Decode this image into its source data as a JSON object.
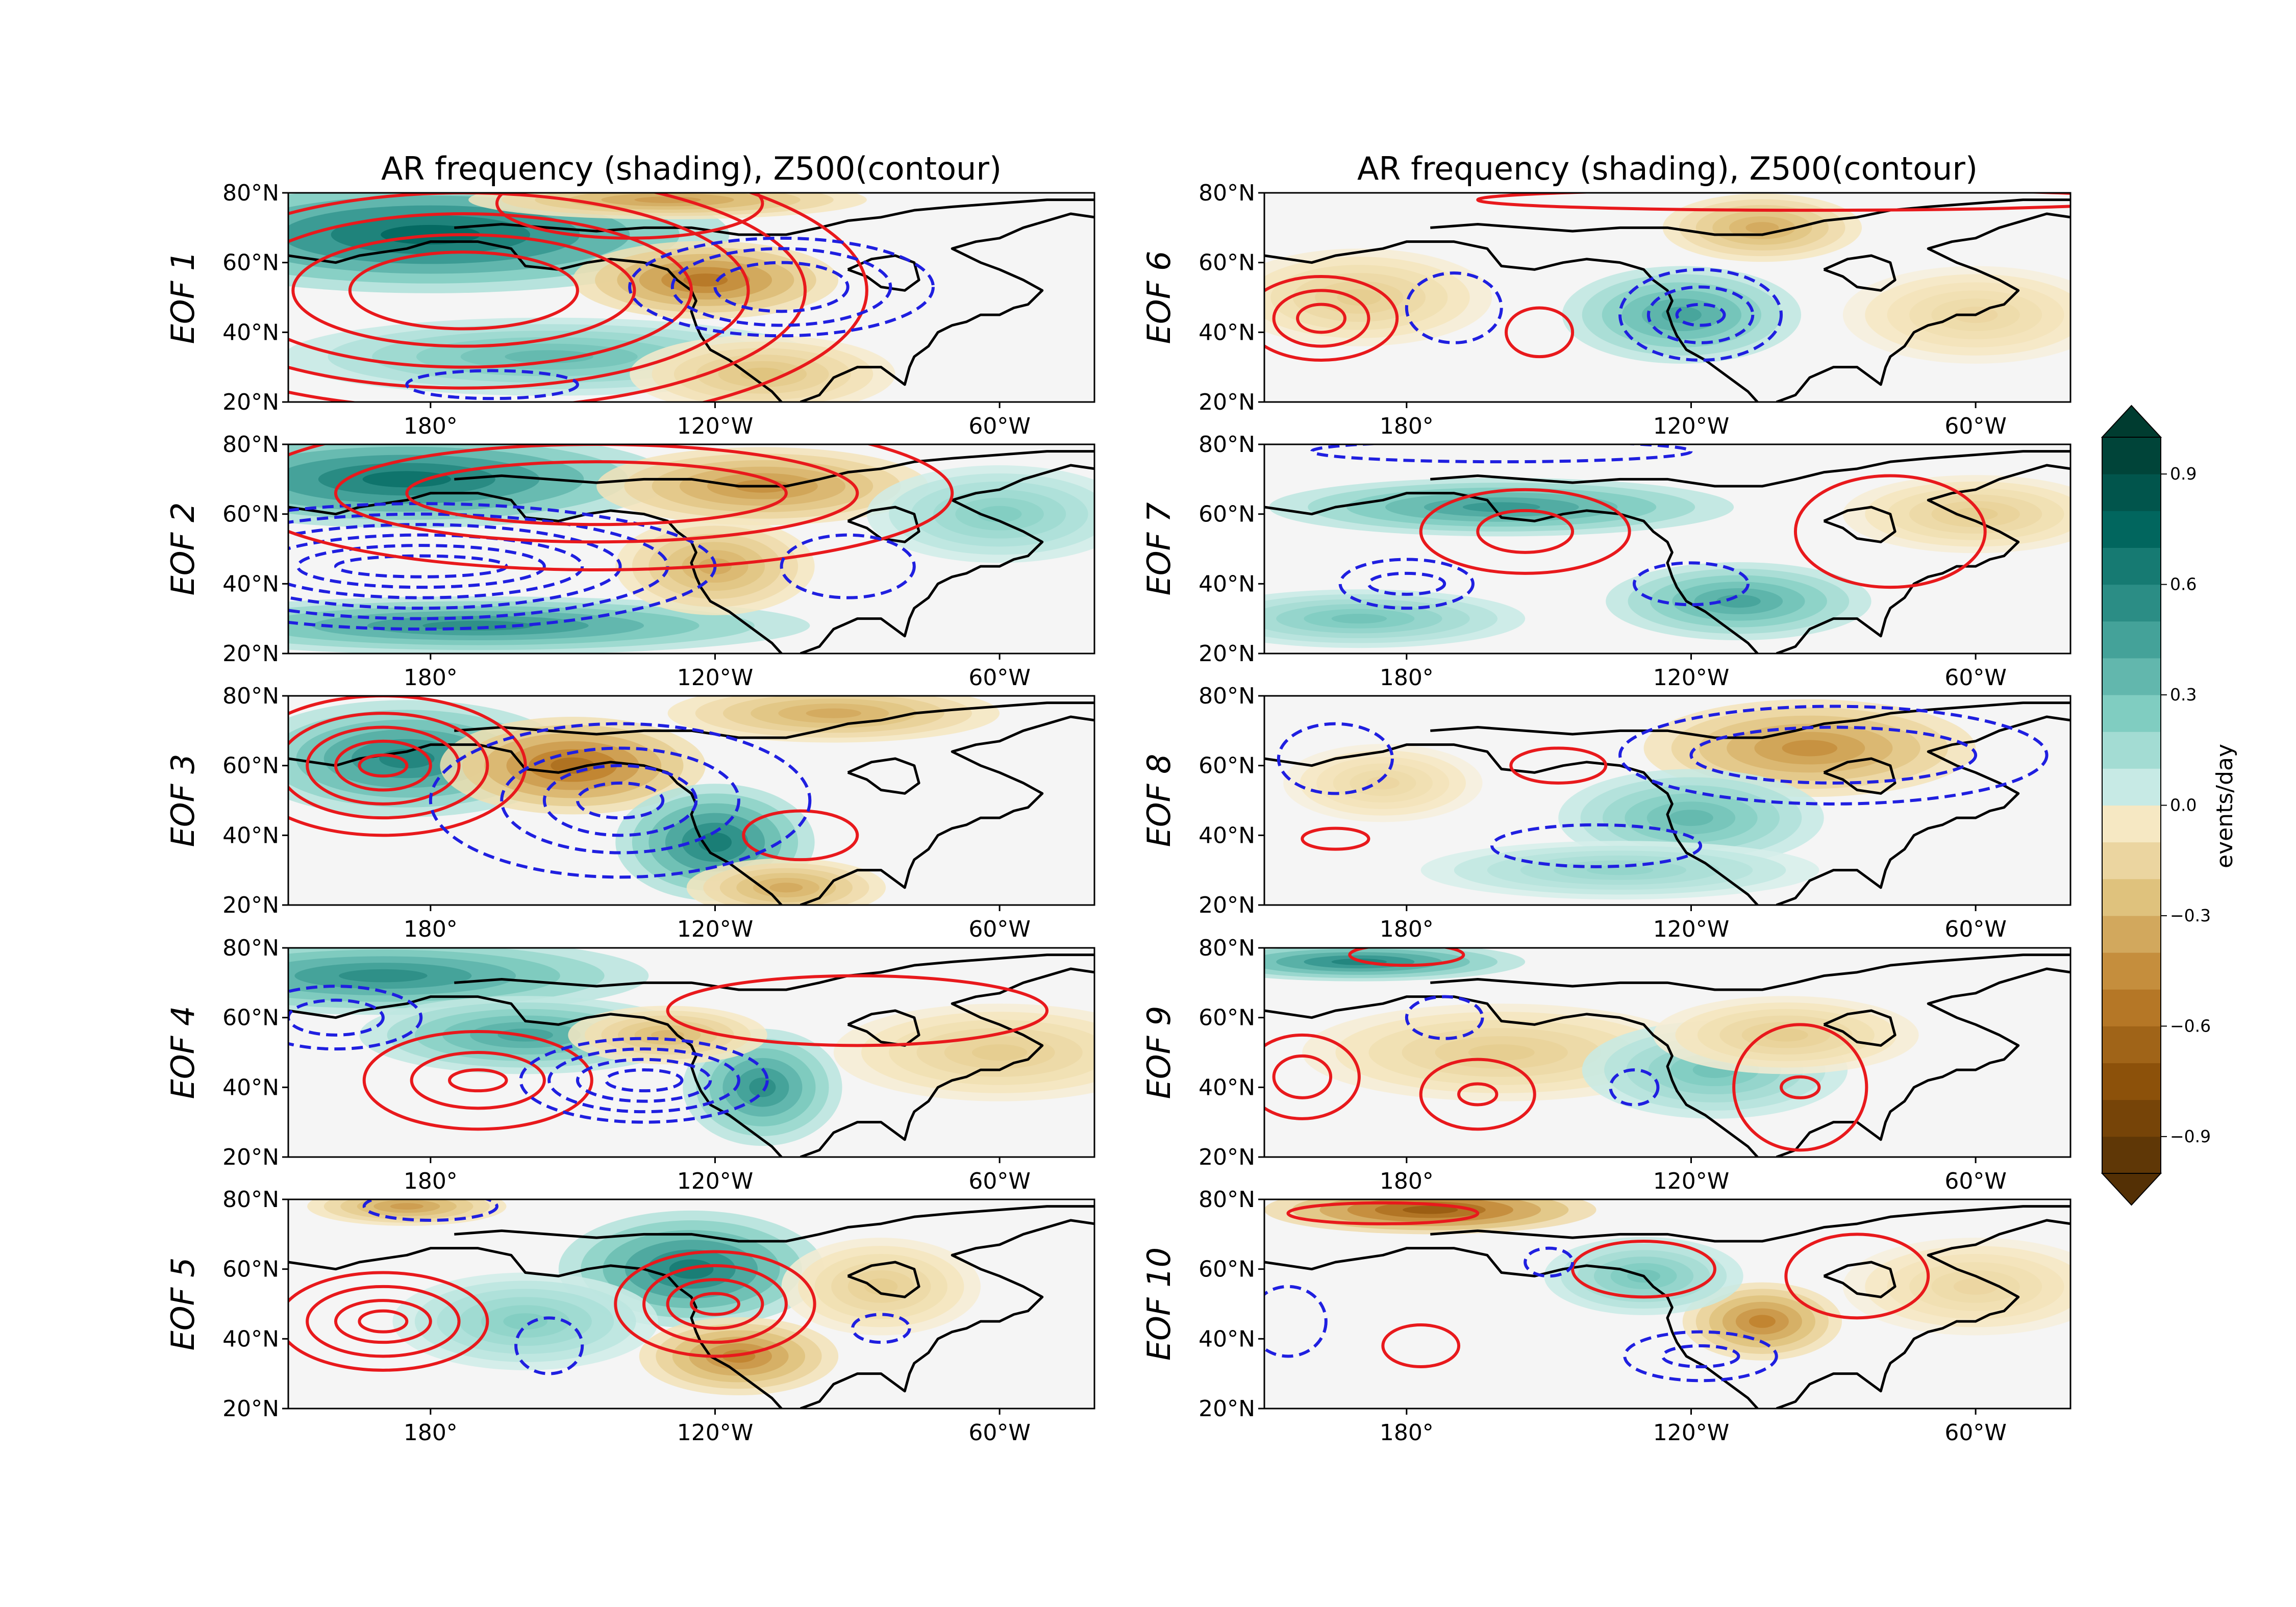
{
  "chart_data": {
    "type": "heatmap",
    "column_titles": [
      "AR frequency (shading), Z500(contour)",
      "AR frequency (shading), Z500(contour)"
    ],
    "panels": [
      {
        "label": "EOF 1"
      },
      {
        "label": "EOF 6"
      },
      {
        "label": "EOF 2"
      },
      {
        "label": "EOF 7"
      },
      {
        "label": "EOF 3"
      },
      {
        "label": "EOF 8"
      },
      {
        "label": "EOF 4"
      },
      {
        "label": "EOF 9"
      },
      {
        "label": "EOF 5"
      },
      {
        "label": "EOF 10"
      }
    ],
    "lat_ticks": [
      "20°N",
      "40°N",
      "60°N",
      "80°N"
    ],
    "lon_ticks": [
      "180°",
      "120°W",
      "60°W"
    ],
    "lat_range": [
      20,
      80
    ],
    "lon_range": [
      150,
      320
    ],
    "lon_tick_values": [
      180,
      240,
      300
    ],
    "lat_tick_values": [
      20,
      40,
      60,
      80
    ],
    "colorbar": {
      "label": "events/day",
      "range": [
        -1.0,
        1.0
      ],
      "levels": 20,
      "ticks": [
        {
          "value": 0.9,
          "label": "0.9"
        },
        {
          "value": 0.6,
          "label": "0.6"
        },
        {
          "value": 0.3,
          "label": "0.3"
        },
        {
          "value": 0.0,
          "label": "0.0"
        },
        {
          "value": -0.3,
          "label": "−0.3"
        },
        {
          "value": -0.6,
          "label": "−0.6"
        },
        {
          "value": -0.9,
          "label": "−0.9"
        }
      ],
      "colormap": "BrBG"
    },
    "contour_colors": {
      "positive": "#e8191c",
      "negative": "#1f1fe0"
    }
  }
}
